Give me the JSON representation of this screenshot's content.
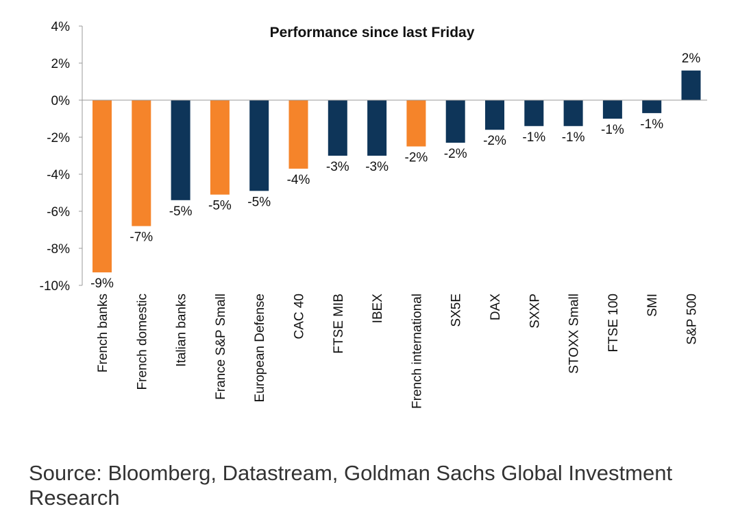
{
  "chart_data": {
    "type": "bar",
    "title": "Performance since last Friday",
    "xlabel": "",
    "ylabel": "",
    "ylim": [
      -10,
      4
    ],
    "yticks": [
      4,
      2,
      0,
      -2,
      -4,
      -6,
      -8,
      -10
    ],
    "ytick_labels": [
      "4%",
      "2%",
      "0%",
      "-2%",
      "-4%",
      "-6%",
      "-8%",
      "-10%"
    ],
    "categories": [
      "French banks",
      "French domestic",
      "Italian banks",
      "France S&P Small",
      "European Defense",
      "CAC 40",
      "FTSE MIB",
      "IBEX",
      "French international",
      "SX5E",
      "DAX",
      "SXXP",
      "STOXX Small",
      "FTSE 100",
      "SMI",
      "S&P 500"
    ],
    "values": [
      -9.3,
      -6.8,
      -5.4,
      -5.1,
      -4.9,
      -3.7,
      -3.0,
      -3.0,
      -2.5,
      -2.3,
      -1.6,
      -1.4,
      -1.4,
      -1.0,
      -0.7,
      1.6
    ],
    "data_labels": [
      "-9%",
      "-7%",
      "-5%",
      "-5%",
      "-5%",
      "-4%",
      "-3%",
      "-3%",
      "-2%",
      "-2%",
      "-2%",
      "-1%",
      "-1%",
      "-1%",
      "-1%",
      "2%"
    ],
    "bar_colors": [
      "#F5842A",
      "#F5842A",
      "#0E3559",
      "#F5842A",
      "#0E3559",
      "#F5842A",
      "#0E3559",
      "#0E3559",
      "#F5842A",
      "#0E3559",
      "#0E3559",
      "#0E3559",
      "#0E3559",
      "#0E3559",
      "#0E3559",
      "#0E3559"
    ],
    "colors": {
      "french": "#F5842A",
      "other": "#0E3559"
    },
    "grid": false,
    "legend": "none"
  },
  "source_note": "Source: Bloomberg, Datastream, Goldman Sachs Global Investment Research"
}
